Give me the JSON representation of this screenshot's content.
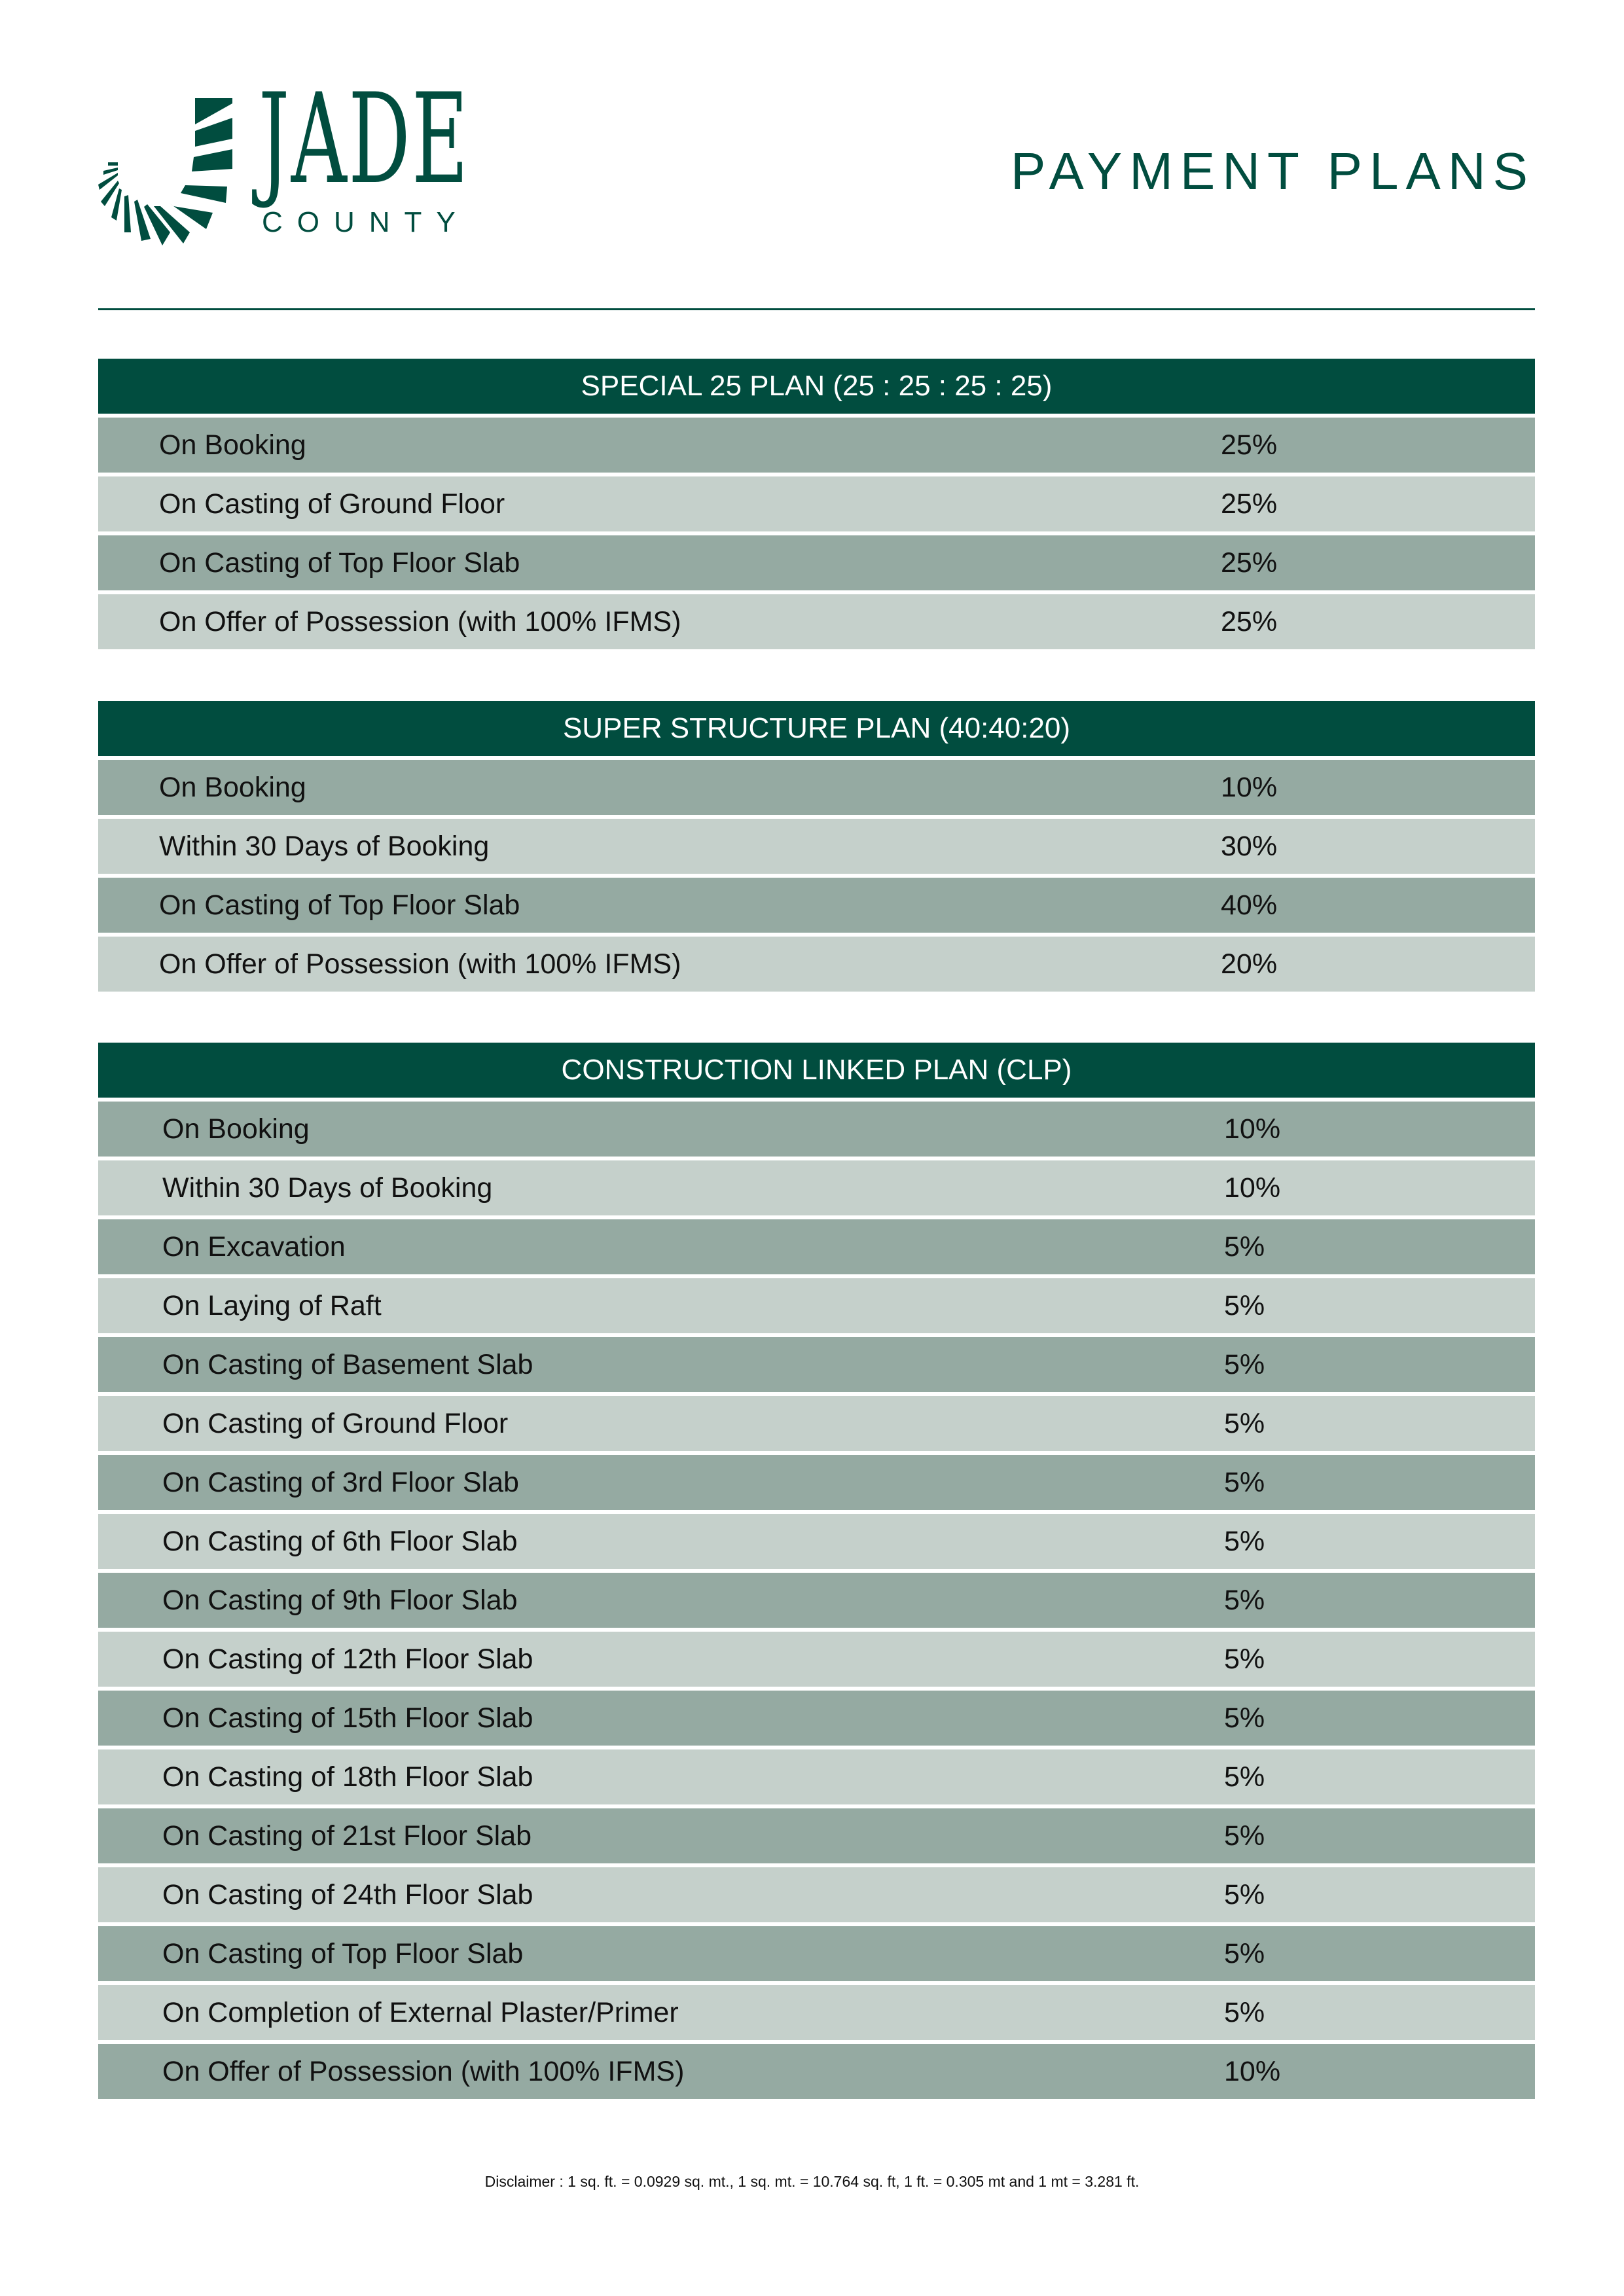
{
  "brand": {
    "name": "JADE",
    "sub": "COUNTY",
    "color": "#014d3f"
  },
  "header": {
    "title": "PAYMENT PLANS"
  },
  "colors": {
    "header": "#014d3f",
    "row_dark": "#95aaa2",
    "row_light": "#c5d0cb"
  },
  "plans": [
    {
      "title": "SPECIAL 25 PLAN (25 : 25 : 25 : 25)",
      "rows": [
        {
          "label": "On Booking",
          "value": "25%"
        },
        {
          "label": "On Casting of Ground Floor",
          "value": "25%"
        },
        {
          "label": "On Casting of Top Floor Slab",
          "value": "25%"
        },
        {
          "label": "On Offer of Possession (with 100% IFMS)",
          "value": "25%"
        }
      ]
    },
    {
      "title": "SUPER STRUCTURE PLAN (40:40:20)",
      "rows": [
        {
          "label": "On Booking",
          "value": "10%"
        },
        {
          "label": "Within 30 Days of Booking",
          "value": "30%"
        },
        {
          "label": "On Casting of Top Floor Slab",
          "value": "40%"
        },
        {
          "label": "On Offer of Possession (with 100% IFMS)",
          "value": "20%"
        }
      ]
    },
    {
      "title": "CONSTRUCTION LINKED PLAN (CLP)",
      "rows": [
        {
          "label": "On Booking",
          "value": "10%"
        },
        {
          "label": "Within 30 Days of Booking",
          "value": "10%"
        },
        {
          "label": "On Excavation",
          "value": "5%"
        },
        {
          "label": "On Laying of Raft",
          "value": "5%"
        },
        {
          "label": "On Casting of Basement Slab",
          "value": "5%"
        },
        {
          "label": "On Casting of Ground Floor",
          "value": "5%"
        },
        {
          "label": "On Casting of 3rd Floor Slab",
          "value": "5%"
        },
        {
          "label": "On Casting of 6th Floor Slab",
          "value": "5%"
        },
        {
          "label": "On Casting of 9th Floor Slab",
          "value": "5%"
        },
        {
          "label": "On Casting of 12th Floor Slab",
          "value": "5%"
        },
        {
          "label": "On Casting of 15th Floor Slab",
          "value": "5%"
        },
        {
          "label": "On Casting of 18th Floor Slab",
          "value": "5%"
        },
        {
          "label": "On Casting of 21st Floor Slab",
          "value": "5%"
        },
        {
          "label": "On Casting of 24th Floor Slab",
          "value": "5%"
        },
        {
          "label": "On Casting of Top Floor Slab",
          "value": "5%"
        },
        {
          "label": "On Completion of External Plaster/Primer",
          "value": "5%"
        },
        {
          "label": "On Offer of Possession (with 100% IFMS)",
          "value": "10%"
        }
      ]
    }
  ],
  "disclaimer": "Disclaimer : 1 sq. ft. = 0.0929 sq. mt., 1 sq. mt. = 10.764 sq. ft, 1 ft. = 0.305 mt and 1 mt = 3.281 ft."
}
